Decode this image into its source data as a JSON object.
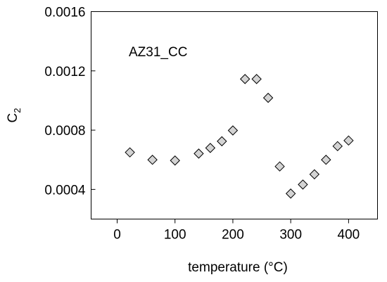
{
  "chart_data": {
    "type": "scatter",
    "annotation": "AZ31_CC",
    "xlabel": "temperature (°C)",
    "ylabel_main": "C",
    "ylabel_sub": "2",
    "xlim": [
      -45,
      450
    ],
    "ylim": [
      0.0002,
      0.0016
    ],
    "xticks": [
      0,
      100,
      200,
      300,
      400
    ],
    "xtick_labels": [
      "0",
      "100",
      "200",
      "300",
      "400"
    ],
    "yticks": [
      0.0004,
      0.0008,
      0.0012,
      0.0016
    ],
    "ytick_labels": [
      "0.0004",
      "0.0008",
      "0.0012",
      "0.0016"
    ],
    "grid": false,
    "marker": "diamond",
    "marker_fill": "#d3d3d3",
    "marker_stroke": "#000000",
    "series": [
      {
        "x": [
          22,
          61,
          100,
          141,
          161,
          181,
          200,
          221,
          241,
          261,
          281,
          300,
          321,
          341,
          361,
          381,
          400
        ],
        "y": [
          0.00065,
          0.0006,
          0.000595,
          0.000642,
          0.00068,
          0.000725,
          0.000798,
          0.001145,
          0.001145,
          0.001018,
          0.000555,
          0.000372,
          0.000433,
          0.000502,
          0.0006,
          0.000692,
          0.00073
        ]
      }
    ]
  }
}
